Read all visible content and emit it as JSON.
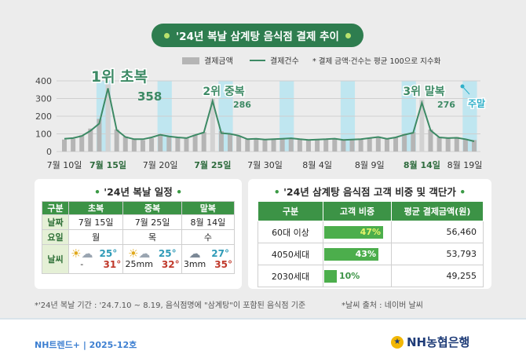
{
  "title": "'24년 복날 삼계탕 음식점 결제 추이",
  "chart_data": {
    "type": "bar",
    "legend": {
      "bar_label": "결제금액",
      "line_label": "결제건수",
      "note": "* 결제 금액·건수는 평균 100으로 지수화"
    },
    "yticks": [
      "400",
      "300",
      "200",
      "100",
      "0"
    ],
    "ylim": [
      0,
      400
    ],
    "xtick_labels": [
      "7월 10일",
      "7월 15일",
      "7월 20일",
      "7월 25일",
      "7월 30일",
      "8월 4일",
      "8월 9일",
      "8월 14일",
      "8월 19일"
    ],
    "bold_xticks": [
      "7월 15일",
      "7월 25일",
      "8월 14일"
    ],
    "bar_values": [
      68,
      72,
      92,
      130,
      185,
      380,
      125,
      85,
      68,
      65,
      75,
      98,
      88,
      80,
      75,
      95,
      110,
      300,
      115,
      100,
      90,
      70,
      72,
      68,
      70,
      72,
      75,
      72,
      68,
      70,
      72,
      75,
      68,
      70,
      72,
      78,
      85,
      75,
      82,
      98,
      110,
      295,
      125,
      82,
      80,
      82,
      72,
      65
    ],
    "line_values": [
      72,
      76,
      88,
      118,
      158,
      358,
      122,
      82,
      70,
      70,
      80,
      95,
      86,
      80,
      76,
      93,
      108,
      286,
      104,
      100,
      90,
      70,
      72,
      68,
      70,
      72,
      75,
      70,
      66,
      68,
      70,
      73,
      66,
      68,
      70,
      76,
      82,
      72,
      80,
      95,
      106,
      276,
      120,
      80,
      76,
      78,
      70,
      58
    ],
    "annotations": [
      {
        "label": "1위 초복",
        "value": "358"
      },
      {
        "label": "2위 중복",
        "value": "286"
      },
      {
        "label": "3위 말복",
        "value": "276"
      },
      {
        "label": "주말",
        "value": ""
      }
    ]
  },
  "schedule": {
    "title": "'24년 복날 일정",
    "headers": [
      "구분",
      "초복",
      "중복",
      "말복"
    ],
    "dates_label": "날짜",
    "dates": [
      "7월 15일",
      "7월 25일",
      "8월 14일"
    ],
    "weekday_label": "요일",
    "weekdays": [
      "월",
      "목",
      "수"
    ],
    "weather_label": "날씨",
    "weather": [
      {
        "low": "25°",
        "rain": "-",
        "high": "31°",
        "icon": "sun-cloud-rain-icon"
      },
      {
        "low": "25°",
        "rain": "25mm",
        "high": "32°",
        "icon": "sun-cloud-rain-icon"
      },
      {
        "low": "27°",
        "rain": "3mm",
        "high": "35°",
        "icon": "cloud-rain-icon"
      }
    ]
  },
  "customers": {
    "title": "'24년 삼계탕 음식점 고객 비중 및 객단가",
    "headers": [
      "구분",
      "고객 비중",
      "평균 결제금액(원)"
    ],
    "rows": [
      {
        "segment": "60대 이상",
        "share": "47%",
        "share_value": 0.47,
        "amount": "56,460"
      },
      {
        "segment": "4050세대",
        "share": "43%",
        "share_value": 0.43,
        "amount": "53,793"
      },
      {
        "segment": "2030세대",
        "share": "10%",
        "share_value": 0.1,
        "amount": "49,255"
      }
    ]
  },
  "footnotes": {
    "period": "*'24년 복날 기간 : '24.7.10 ~ 8.19, 음식점명에 \"삼계탕\"이 포함된 음식점 기준",
    "weather_source": "*날씨 출처 : 네이버 날씨"
  },
  "footer": {
    "brand": "NH트렌드+  |  2025-12호",
    "logo": "NH농협은행"
  },
  "colors": {
    "green": "#2e7d4f",
    "bar": "#b5b5b5",
    "highlight_bar": "#d2d2d2",
    "line": "#3d8a65",
    "weekend": "#bfe6f0",
    "accent": "#3c9346"
  }
}
